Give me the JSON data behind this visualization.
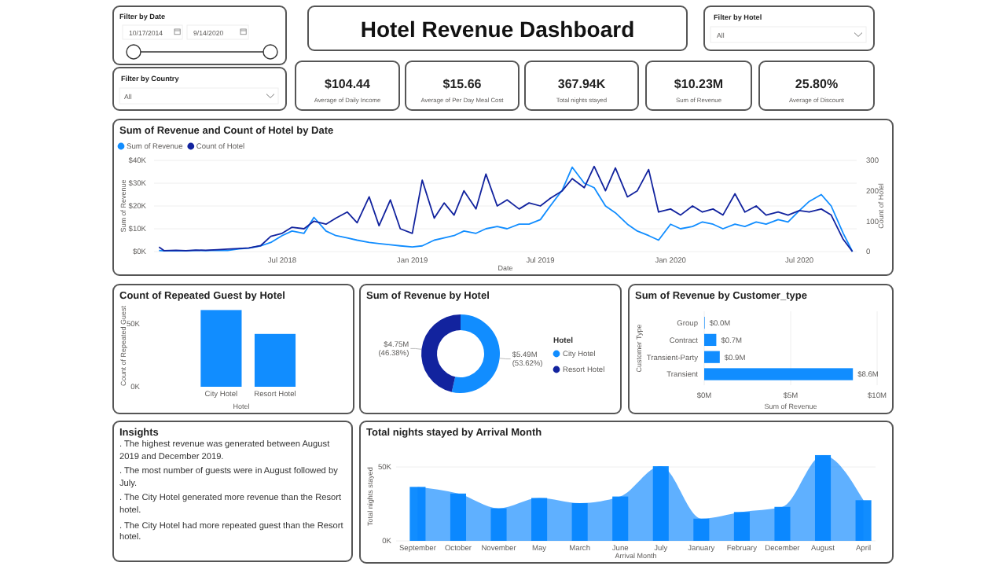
{
  "chart_data": [
    {
      "type": "other",
      "title": "Hotel Revenue Dashboard",
      "annotations": [
        "Filter by Date",
        "10/17/2014",
        "9/14/2020",
        "Filter by Hotel",
        "All",
        "Filter by Country",
        "All",
        "$104.44",
        "Average of Daily Income",
        "$15.66",
        "Average of Per Day Meal Cost",
        "367.94K",
        "Total nights stayed",
        "$10.23M",
        "Sum of Revenue",
        "25.80%",
        "Average of Discount"
      ]
    },
    {
      "type": "line",
      "title": "Sum of Revenue and Count of Hotel by Date",
      "xlabel": "Date",
      "ylabel": "Sum of Revenue",
      "y2label": "Count of Hotel",
      "legend": "top left",
      "grid": "y",
      "x": [
        "2018-01-08",
        "2018-01-15",
        "2018-02-01",
        "2018-02-15",
        "2018-03-01",
        "2018-03-15",
        "2018-04-01",
        "2018-04-15",
        "2018-05-01",
        "2018-05-15",
        "2018-06-01",
        "2018-06-15",
        "2018-07-01",
        "2018-07-15",
        "2018-08-01",
        "2018-08-15",
        "2018-09-01",
        "2018-09-15",
        "2018-10-01",
        "2018-10-15",
        "2018-11-01",
        "2018-11-15",
        "2018-12-01",
        "2018-12-15",
        "2019-01-01",
        "2019-01-15",
        "2019-02-01",
        "2019-02-15",
        "2019-03-01",
        "2019-03-15",
        "2019-04-01",
        "2019-04-15",
        "2019-05-01",
        "2019-05-15",
        "2019-06-01",
        "2019-06-15",
        "2019-07-01",
        "2019-07-15",
        "2019-08-01",
        "2019-08-15",
        "2019-09-01",
        "2019-09-15",
        "2019-10-01",
        "2019-10-15",
        "2019-11-01",
        "2019-11-15",
        "2019-12-01",
        "2019-12-15",
        "2020-01-01",
        "2020-01-15",
        "2020-02-01",
        "2020-02-15",
        "2020-03-01",
        "2020-03-15",
        "2020-04-01",
        "2020-04-15",
        "2020-05-01",
        "2020-05-15",
        "2020-06-01",
        "2020-06-15",
        "2020-07-01",
        "2020-07-15",
        "2020-08-01",
        "2020-08-15",
        "2020-09-01",
        "2020-09-14"
      ],
      "xlim": [
        "2018-01-01",
        "2020-09-20"
      ],
      "xticks": [
        {
          "value": "2018-07-01",
          "label": "Jul 2018"
        },
        {
          "value": "2019-01-01",
          "label": "Jan 2019"
        },
        {
          "value": "2019-07-01",
          "label": "Jul 2019"
        },
        {
          "value": "2020-01-01",
          "label": "Jan 2020"
        },
        {
          "value": "2020-07-01",
          "label": "Jul 2020"
        }
      ],
      "ylim": [
        0,
        40000
      ],
      "yticks": [
        {
          "value": 0,
          "label": "$0K"
        },
        {
          "value": 10000,
          "label": "$10K"
        },
        {
          "value": 20000,
          "label": "$20K"
        },
        {
          "value": 30000,
          "label": "$30K"
        },
        {
          "value": 40000,
          "label": "$40K"
        }
      ],
      "y2lim": [
        0,
        300
      ],
      "y2ticks": [
        0,
        100,
        200,
        300
      ],
      "series": [
        {
          "name": "Sum of Revenue",
          "color": "#118dff",
          "values": [
            500,
            300,
            400,
            300,
            500,
            400,
            600,
            500,
            1200,
            1500,
            2500,
            4000,
            7000,
            9000,
            8000,
            15000,
            9000,
            7000,
            6000,
            5000,
            4000,
            3500,
            3000,
            2500,
            2000,
            2500,
            5000,
            6000,
            7000,
            9000,
            8000,
            10000,
            11000,
            10000,
            12000,
            12000,
            14000,
            20000,
            27000,
            37000,
            30000,
            28000,
            20000,
            17000,
            12000,
            9000,
            7000,
            5000,
            12000,
            10000,
            11000,
            13000,
            12000,
            10000,
            12000,
            11000,
            13000,
            12000,
            14000,
            13000,
            18000,
            22000,
            25000,
            20000,
            8000,
            0
          ]
        },
        {
          "name": "Count of Hotel",
          "color": "#12239e",
          "axis": "y2",
          "values": [
            15,
            3,
            4,
            3,
            5,
            4,
            6,
            8,
            10,
            12,
            20,
            50,
            60,
            80,
            75,
            100,
            90,
            110,
            130,
            95,
            180,
            85,
            170,
            75,
            60,
            235,
            110,
            160,
            120,
            200,
            140,
            255,
            150,
            170,
            140,
            160,
            150,
            175,
            200,
            240,
            210,
            280,
            200,
            275,
            180,
            200,
            270,
            130,
            140,
            120,
            150,
            130,
            140,
            120,
            190,
            130,
            150,
            120,
            130,
            120,
            135,
            130,
            140,
            120,
            40,
            0
          ]
        }
      ]
    },
    {
      "type": "bar",
      "title": "Count of Repeated Guest by Hotel",
      "xlabel": "Hotel",
      "ylabel": "Count of Repeated Guest",
      "categories": [
        "City Hotel",
        "Resort Hotel"
      ],
      "values": [
        61000,
        42000
      ],
      "color": "#118dff",
      "ylim": [
        0,
        65000
      ],
      "yticks": [
        {
          "value": 0,
          "label": "0K"
        },
        {
          "value": 50000,
          "label": "50K"
        }
      ]
    },
    {
      "type": "donut",
      "title": "Sum of Revenue by Hotel",
      "legend_title": "Hotel",
      "legend": "right",
      "categories": [
        "City Hotel",
        "Resort Hotel"
      ],
      "values": [
        53.62,
        46.38
      ],
      "colors": [
        "#118dff",
        "#12239e"
      ],
      "value_labels": [
        "$5.49M\n(53.62%)",
        "$4.75M\n(46.38%)"
      ]
    },
    {
      "type": "bar",
      "orientation": "horizontal",
      "title": "Sum of Revenue by Customer_type",
      "xlabel": "Sum of Revenue",
      "ylabel": "Customer Type",
      "categories": [
        "Group",
        "Contract",
        "Transient-Party",
        "Transient"
      ],
      "values": [
        0.03,
        0.7,
        0.9,
        8.6
      ],
      "color": "#118dff",
      "value_labels": [
        "$0.0M",
        "$0.7M",
        "$0.9M",
        "$8.6M"
      ],
      "xlim": [
        0,
        10
      ],
      "xticks": [
        {
          "value": 0,
          "label": "$0M"
        },
        {
          "value": 5,
          "label": "$5M"
        },
        {
          "value": 10,
          "label": "$10M"
        }
      ],
      "grid": "x"
    },
    {
      "type": "other",
      "title": "Insights",
      "annotations": [
        ". The highest revenue was generated between August 2019 and December 2019.",
        ". The most number of guests were in August followed by July.",
        ". The City Hotel generated more revenue than the Resort hotel.",
        ". The City Hotel had more repeated guest than the Resort hotel."
      ]
    },
    {
      "type": "bar",
      "title": "Total nights stayed by Arrival Month",
      "xlabel": "Arrival Month",
      "ylabel": "Total nights stayed",
      "grid": "y",
      "categories": [
        "September",
        "October",
        "November",
        "May",
        "March",
        "June",
        "July",
        "January",
        "February",
        "December",
        "August",
        "April"
      ],
      "ylim": [
        0,
        60000
      ],
      "yticks": [
        {
          "value": 0,
          "label": "0K"
        },
        {
          "value": 50000,
          "label": "50K"
        }
      ],
      "series": [
        {
          "type": "area",
          "color": "#5fb0ff",
          "values": [
            36500,
            32000,
            22000,
            29000,
            25500,
            30000,
            50500,
            15000,
            19500,
            23000,
            58000,
            27500
          ]
        },
        {
          "type": "bar",
          "color": "#118dff",
          "values": [
            36500,
            32000,
            22000,
            29000,
            25500,
            30000,
            50500,
            15000,
            19500,
            23000,
            58000,
            27500
          ]
        }
      ]
    }
  ]
}
